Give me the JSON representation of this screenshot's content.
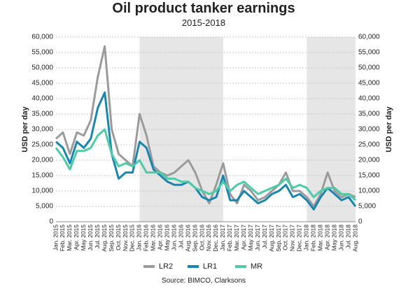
{
  "chart_data": {
    "type": "line",
    "title": "Oil product tanker earnings",
    "subtitle": "2015-2018",
    "y_label": "USD per day",
    "source": "Source: BIMCO, Clarksons",
    "categories": [
      "Jan. 2015",
      "Feb. 2015",
      "Mar. 2015",
      "Apr. 2015",
      "May 2015",
      "Jun. 2015",
      "Jul. 2015",
      "Aug. 2015",
      "Sep. 2015",
      "Oct. 2015",
      "Nov. 2015",
      "Dec. 2015",
      "Jan. 2016",
      "Feb. 2016",
      "Mar. 2016",
      "Apr. 2016",
      "May 2016",
      "Jun. 2016",
      "Jul. 2016",
      "Aug. 2016",
      "Sep. 2016",
      "Oct. 2016",
      "Nov. 2016",
      "Dec. 2016",
      "Jan. 2017",
      "Feb. 2017",
      "Mar. 2017",
      "Apr. 2017",
      "May 2017",
      "Jun. 2017",
      "Jul. 2017",
      "Aug. 2017",
      "Sep. 2017",
      "Oct. 2017",
      "Nov. 2017",
      "Dec. 2017",
      "Jan. 2018",
      "Feb. 2018",
      "Mar. 2018",
      "Apr. 2018",
      "May 2018",
      "Jun. 2018",
      "Jul. 2018",
      "Aug. 2018"
    ],
    "series": [
      {
        "name": "LR2",
        "color": "#9b9b9b",
        "values": [
          27000,
          29000,
          22000,
          29000,
          28000,
          33000,
          47000,
          57000,
          30000,
          22000,
          20000,
          18000,
          35000,
          28000,
          18000,
          16000,
          15000,
          16000,
          18000,
          20000,
          16000,
          10000,
          6000,
          12000,
          19000,
          9000,
          6000,
          12000,
          10000,
          7000,
          8000,
          10000,
          12000,
          16000,
          10000,
          10000,
          8000,
          5000,
          9000,
          16000,
          10000,
          8000,
          9000,
          8000
        ]
      },
      {
        "name": "LR1",
        "color": "#1a86b0",
        "values": [
          26000,
          24000,
          19000,
          26000,
          24000,
          27000,
          37000,
          42000,
          22000,
          14000,
          16000,
          16000,
          26000,
          24000,
          17000,
          15000,
          13000,
          12000,
          12000,
          13000,
          11000,
          8000,
          7000,
          8000,
          15000,
          7000,
          7000,
          10000,
          8000,
          6000,
          7000,
          9000,
          10000,
          12000,
          8000,
          9000,
          7000,
          4000,
          8000,
          11000,
          9000,
          7000,
          8000,
          5000
        ]
      },
      {
        "name": "MR",
        "color": "#4fcba7",
        "values": [
          24000,
          21000,
          17000,
          23000,
          23000,
          24000,
          28000,
          30000,
          22000,
          18000,
          19000,
          18000,
          20000,
          16000,
          16000,
          16000,
          14000,
          14000,
          13000,
          13000,
          11000,
          10000,
          9000,
          10000,
          13000,
          10000,
          12000,
          13000,
          11000,
          9000,
          10000,
          11000,
          12000,
          14000,
          11000,
          12000,
          11000,
          8000,
          10000,
          11000,
          11000,
          9000,
          9000,
          7000
        ]
      }
    ],
    "ylim": [
      0,
      60000
    ],
    "yticks": [
      0,
      {
        "value": 5000,
        "label": "5,000"
      },
      {
        "value": 10000,
        "label": "10,000"
      },
      {
        "value": 15000,
        "label": "15,000"
      },
      {
        "value": 20000,
        "label": "20,000"
      },
      {
        "value": 25000,
        "label": "25,000"
      },
      {
        "value": 30000,
        "label": "30,000"
      },
      {
        "value": 35000,
        "label": "35,000"
      },
      {
        "value": 40000,
        "label": "40,000"
      },
      {
        "value": 45000,
        "label": "45,000"
      },
      {
        "value": 50000,
        "label": "50,000"
      },
      {
        "value": 55000,
        "label": "55,000"
      },
      {
        "value": 60000,
        "label": "60,000"
      }
    ],
    "grid": true,
    "legend": "bottom"
  }
}
